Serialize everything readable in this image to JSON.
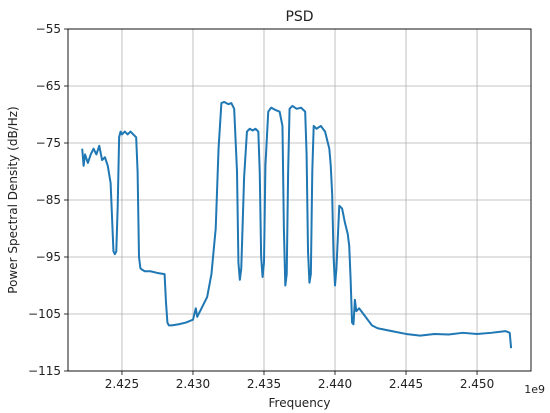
{
  "chart_data": {
    "type": "line",
    "title": "PSD",
    "xlabel": "Frequency",
    "ylabel": "Power Spectral Density (dB/Hz)",
    "x_offset_label": "1e9",
    "xlim": [
      2.4212,
      2.4538
    ],
    "ylim": [
      -115,
      -55
    ],
    "xticks": [
      2.425,
      2.43,
      2.435,
      2.44,
      2.445,
      2.45
    ],
    "xtick_labels": [
      "2.425",
      "2.430",
      "2.435",
      "2.440",
      "2.445",
      "2.450"
    ],
    "yticks": [
      -115,
      -105,
      -95,
      -85,
      -75,
      -65,
      -55
    ],
    "ytick_labels": [
      "−115",
      "−105",
      "−95",
      "−85",
      "−75",
      "−65",
      "−55"
    ],
    "grid": true,
    "color": "#1f77b4",
    "series": [
      {
        "x": [
          2.4222,
          2.4223,
          2.4224,
          2.4226,
          2.4228,
          2.423,
          2.4232,
          2.4234,
          2.4236,
          2.4238,
          2.424,
          2.4242,
          2.4243,
          2.4244,
          2.4245,
          2.4246,
          2.4247,
          2.4248,
          2.4249,
          2.425,
          2.4252,
          2.4254,
          2.4256,
          2.4258,
          2.426,
          2.4261,
          2.4262,
          2.4263,
          2.4264,
          2.4266,
          2.427,
          2.4275,
          2.428,
          2.4281,
          2.4282,
          2.4283,
          2.4285,
          2.429,
          2.4295,
          2.43,
          2.4302,
          2.4303,
          2.4305,
          2.431,
          2.4313,
          2.4316,
          2.4318,
          2.432,
          2.4322,
          2.4325,
          2.4327,
          2.4329,
          2.4331,
          2.4332,
          2.4333,
          2.4334,
          2.4336,
          2.4338,
          2.434,
          2.4342,
          2.4344,
          2.4346,
          2.4347,
          2.4348,
          2.4349,
          2.435,
          2.4351,
          2.4353,
          2.4355,
          2.4358,
          2.4361,
          2.4363,
          2.4364,
          2.4365,
          2.4366,
          2.4367,
          2.4368,
          2.437,
          2.4373,
          2.4376,
          2.4379,
          2.438,
          2.4381,
          2.4382,
          2.4383,
          2.4384,
          2.4385,
          2.4387,
          2.439,
          2.4393,
          2.4396,
          2.4397,
          2.4398,
          2.4399,
          2.44,
          2.4401,
          2.4403,
          2.4405,
          2.4407,
          2.4409,
          2.441,
          2.4411,
          2.4412,
          2.4413,
          2.4414,
          2.4415,
          2.4417,
          2.442,
          2.4423,
          2.4426,
          2.443,
          2.444,
          2.445,
          2.446,
          2.447,
          2.448,
          2.449,
          2.45,
          2.451,
          2.452,
          2.4522,
          2.4523,
          2.4524
        ],
        "y": [
          -76,
          -79,
          -77,
          -78.5,
          -77,
          -76,
          -77,
          -75.5,
          -78,
          -77.5,
          -79,
          -82,
          -88,
          -94,
          -94.5,
          -94,
          -86,
          -74,
          -73,
          -73.5,
          -73,
          -73.5,
          -73,
          -73.5,
          -74,
          -80,
          -95,
          -97,
          -97.2,
          -97.5,
          -97.5,
          -97.8,
          -98,
          -103,
          -106.5,
          -107,
          -107,
          -106.8,
          -106.5,
          -106,
          -104,
          -105.5,
          -104.5,
          -102,
          -98,
          -90,
          -76,
          -68,
          -67.8,
          -68.2,
          -68,
          -69,
          -80,
          -96,
          -99,
          -97,
          -81,
          -73,
          -72.5,
          -72.8,
          -72.5,
          -73,
          -80,
          -95,
          -98.5,
          -96,
          -79,
          -69.5,
          -68.8,
          -69.2,
          -69.5,
          -72,
          -90,
          -100,
          -98,
          -80,
          -69,
          -68.5,
          -69,
          -68.8,
          -69.5,
          -77,
          -94,
          -99.5,
          -98,
          -80,
          -72,
          -72.5,
          -72,
          -73,
          -76,
          -79,
          -84,
          -95,
          -100,
          -97,
          -86,
          -86.5,
          -89,
          -91,
          -93,
          -99,
          -106.5,
          -106.8,
          -102.5,
          -104.5,
          -104,
          -105,
          -106,
          -107,
          -107.5,
          -108,
          -108.5,
          -108.8,
          -108.5,
          -108.6,
          -108.3,
          -108.5,
          -108.3,
          -108,
          -108.2,
          -108.3,
          -111
        ]
      }
    ]
  }
}
